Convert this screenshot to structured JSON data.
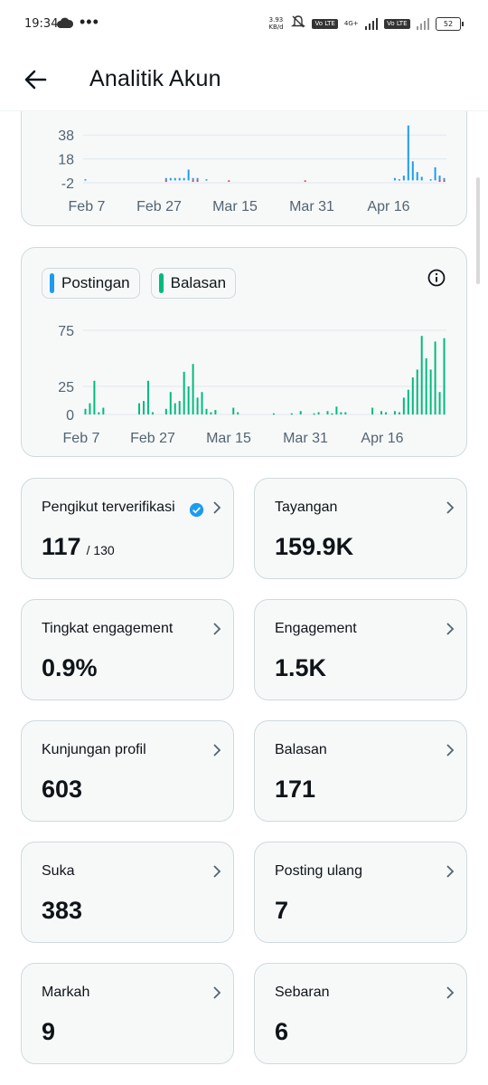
{
  "status_bar": {
    "time": "19:34",
    "dots": "•••",
    "speed_top": "3.93",
    "speed_bottom": "KB/d",
    "lte1": "Vo LTE",
    "network": "4G+",
    "lte2": "Vo LTE",
    "battery": "52"
  },
  "header": {
    "title": "Analitik Akun"
  },
  "chart_data": [
    {
      "type": "bar",
      "ytick_labels": [
        "38",
        "18",
        "-2"
      ],
      "xtick_labels": [
        "Feb 7",
        "Feb 27",
        "Mar 15",
        "Mar 31",
        "Apr 16"
      ],
      "ylim": [
        -2,
        48
      ],
      "categories_days": 81,
      "series": [
        {
          "color": "#1d9bf0",
          "values": [
            1,
            0,
            0,
            0,
            0,
            0,
            0,
            0,
            0,
            0,
            0,
            0,
            0,
            0,
            0,
            0,
            0,
            0,
            2,
            2,
            2,
            2,
            2,
            9,
            2,
            2,
            0,
            1,
            0,
            0,
            0,
            0,
            0,
            0,
            0,
            0,
            0,
            0,
            0,
            0,
            0,
            0,
            0,
            0,
            0,
            0,
            0,
            0,
            0,
            0,
            0,
            0,
            0,
            0,
            0,
            0,
            0,
            0,
            0,
            0,
            0,
            0,
            0,
            0,
            0,
            0,
            0,
            0,
            0,
            2,
            1,
            4,
            46,
            16,
            7,
            3,
            0,
            1,
            11,
            4,
            2
          ]
        },
        {
          "color": "#f4212e",
          "values": [
            0,
            0,
            0,
            0,
            0,
            0,
            0,
            0,
            0,
            0,
            0,
            0,
            0,
            0,
            0,
            0,
            0,
            0,
            -1,
            0,
            0,
            0,
            0,
            0,
            -1,
            -1,
            0,
            0,
            0,
            0,
            0,
            0,
            -1,
            0,
            0,
            0,
            0,
            0,
            0,
            0,
            0,
            0,
            0,
            0,
            0,
            0,
            0,
            0,
            0,
            -1,
            0,
            0,
            0,
            0,
            0,
            0,
            0,
            0,
            0,
            0,
            0,
            0,
            0,
            0,
            0,
            0,
            0,
            0,
            0,
            0,
            0,
            0,
            0,
            0,
            0,
            0,
            0,
            0,
            0,
            -1,
            -1
          ]
        }
      ]
    },
    {
      "type": "bar",
      "legend": [
        "Postingan",
        "Balasan"
      ],
      "legend_colors": [
        "#1d9bf0",
        "#00ba7c"
      ],
      "ytick_labels": [
        "75",
        "25",
        "0"
      ],
      "xtick_labels": [
        "Feb 7",
        "Feb 27",
        "Mar 15",
        "Mar 31",
        "Apr 16"
      ],
      "ylim": [
        0,
        75
      ],
      "categories_days": 81,
      "series": [
        {
          "name": "Postingan",
          "color": "#1d9bf0",
          "values": [
            0,
            0,
            0,
            0,
            0,
            0,
            0,
            0,
            0,
            0,
            0,
            0,
            0,
            0,
            0,
            0,
            0,
            0,
            0,
            0,
            0,
            0,
            0,
            0,
            0,
            0,
            0,
            0,
            0,
            0,
            0,
            0,
            0,
            0,
            0,
            0,
            0,
            0,
            0,
            0,
            0,
            0,
            0,
            0,
            0,
            0,
            0,
            0,
            0,
            0,
            0,
            0,
            0,
            0,
            0,
            0,
            0,
            0,
            0,
            0,
            0,
            0,
            0,
            0,
            0,
            0,
            0,
            0,
            0,
            0,
            0,
            0,
            0,
            0,
            0,
            0,
            0,
            0,
            0,
            0,
            0
          ]
        },
        {
          "name": "Balasan",
          "color": "#00ba7c",
          "values": [
            5,
            10,
            30,
            2,
            6,
            0,
            0,
            0,
            0,
            0,
            0,
            0,
            10,
            12,
            30,
            2,
            0,
            0,
            5,
            20,
            10,
            12,
            38,
            25,
            45,
            15,
            20,
            5,
            2,
            4,
            0,
            0,
            0,
            6,
            2,
            0,
            0,
            0,
            0,
            0,
            0,
            0,
            1,
            0,
            0,
            0,
            1,
            0,
            3,
            0,
            0,
            1,
            2,
            0,
            3,
            1,
            7,
            2,
            2,
            0,
            0,
            0,
            0,
            0,
            6,
            0,
            3,
            2,
            0,
            3,
            2,
            15,
            22,
            33,
            40,
            70,
            50,
            40,
            65,
            20,
            68
          ]
        }
      ]
    }
  ],
  "stats": [
    {
      "label": "Pengikut terverifikasi",
      "value": "117",
      "total": "/ 130",
      "verified": true
    },
    {
      "label": "Tayangan",
      "value": "159.9K"
    },
    {
      "label": "Tingkat engagement",
      "value": "0.9%"
    },
    {
      "label": "Engagement",
      "value": "1.5K"
    },
    {
      "label": "Kunjungan profil",
      "value": "603"
    },
    {
      "label": "Balasan",
      "value": "171"
    },
    {
      "label": "Suka",
      "value": "383"
    },
    {
      "label": "Posting ulang",
      "value": "7"
    },
    {
      "label": "Markah",
      "value": "9"
    },
    {
      "label": "Sebaran",
      "value": "6"
    }
  ]
}
